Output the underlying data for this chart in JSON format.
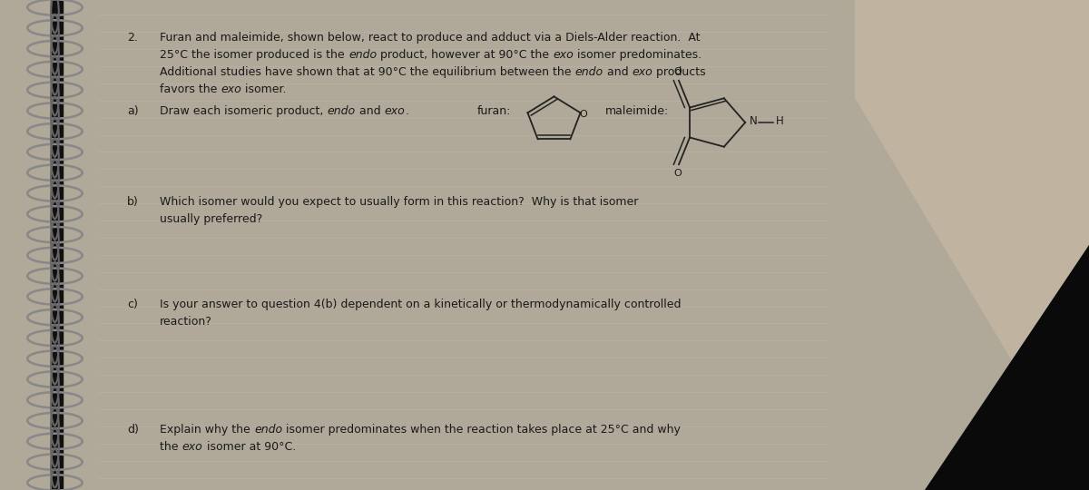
{
  "page_bg": "#ede8df",
  "spiral_bg": "#c8c0b0",
  "right_bg_top": "#b8b0a0",
  "right_bg_bottom": "#111111",
  "text_color": "#1a1a1a",
  "line_color": "#c0b8ac",
  "font_size": 9.0,
  "intro_line1": "Furan and maleimide, shown below, react to produce and adduct via a Diels-Alder reaction.  At",
  "intro_line2a": "25°C the isomer produced is the ",
  "intro_line2b": "endo",
  "intro_line2c": " product, however at 90°C the ",
  "intro_line2d": "exo",
  "intro_line2e": " isomer predominates.",
  "intro_line3": "Additional studies have shown that at 90°C the equilibrium between the ",
  "intro_line3b": "endo",
  "intro_line3c": " and ",
  "intro_line3d": "exo",
  "intro_line3e": " products",
  "intro_line4a": "favors the ",
  "intro_line4b": "exo",
  "intro_line4c": " isomer.",
  "parta_pre": "Draw each isomeric product, ",
  "parta_endo": "endo",
  "parta_mid": " and ",
  "parta_exo": "exo",
  "parta_post": ".",
  "furan_label": "furan:",
  "maleimide_label": "maleimide:",
  "partb_line1": "Which isomer would you expect to usually form in this reaction?  Why is that isomer",
  "partb_line2": "usually preferred?",
  "partc_line1": "Is your answer to question 4(b) dependent on a kinetically or thermodynamically controlled",
  "partc_line2": "reaction?",
  "partd_line1a": "Explain why the ",
  "partd_line1b": "endo",
  "partd_line1c": " isomer predominates when the reaction takes place at 25°C and why",
  "partd_line2a": "the ",
  "partd_line2b": "exo",
  "partd_line2c": " isomer at 90°C."
}
